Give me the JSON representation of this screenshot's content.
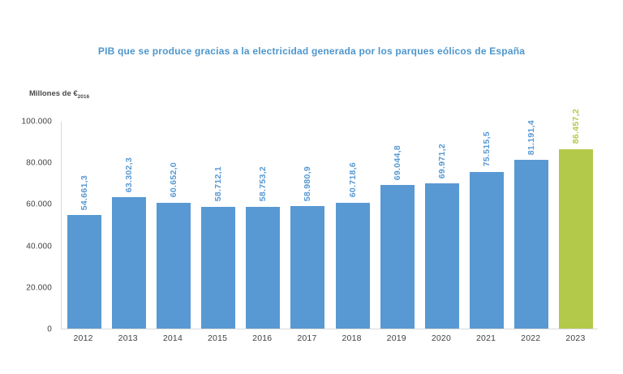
{
  "title": {
    "text": "PIB que se produce gracias a la electricidad generada por los parques eólicos de España",
    "color": "#4E96CC"
  },
  "y_axis_unit": {
    "text": "Millones de €",
    "subscript": "2016"
  },
  "colors": {
    "bar_default": "#5899D3",
    "bar_highlight": "#B2C94A",
    "axis_line": "#D9D9D9",
    "tick_text": "#3F3F3E"
  },
  "chart_data": {
    "type": "bar",
    "title": "PIB que se produce gracias a la electricidad generada por los parques eólicos de España",
    "xlabel": "",
    "ylabel": "Millones de €2016",
    "categories": [
      "2012",
      "2013",
      "2014",
      "2015",
      "2016",
      "2017",
      "2018",
      "2019",
      "2020",
      "2021",
      "2022",
      "2023"
    ],
    "values": [
      54661.3,
      63302.3,
      60652.0,
      58712.1,
      58753.2,
      58980.9,
      60718.6,
      69044.8,
      69971.2,
      75515.5,
      81191.4,
      86457.2
    ],
    "value_labels": [
      "54.661,3",
      "63.302,3",
      "60.652,0",
      "58.712,1",
      "58.753,2",
      "58.980,9",
      "60.718,6",
      "69.044,8",
      "69.971,2",
      "75.515,5",
      "81.191,4",
      "86.457,2"
    ],
    "highlight_category": "2023",
    "ylim": [
      0,
      100000
    ],
    "yticks": {
      "values": [
        0,
        20000,
        40000,
        60000,
        80000,
        100000
      ],
      "labels": [
        "0",
        "20.000",
        "40.000",
        "60.000",
        "80.000",
        "100.000"
      ]
    },
    "grid": false,
    "legend": false
  }
}
